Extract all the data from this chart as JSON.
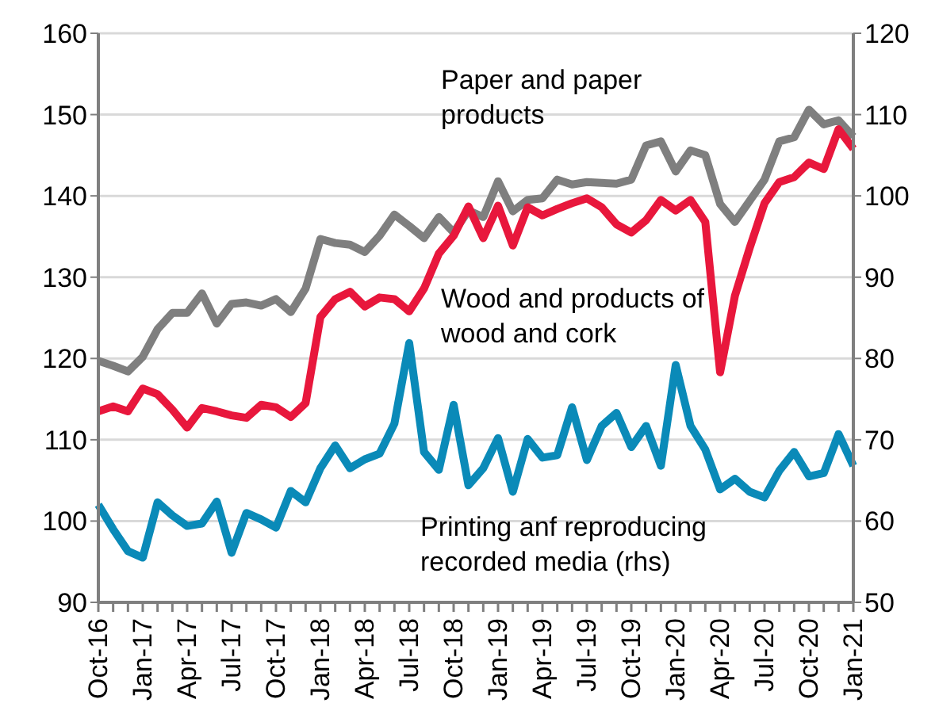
{
  "chart_data": {
    "type": "line",
    "categories": [
      "Oct-16",
      null,
      null,
      "Jan-17",
      null,
      null,
      "Apr-17",
      null,
      null,
      "Jul-17",
      null,
      null,
      "Oct-17",
      null,
      null,
      "Jan-18",
      null,
      null,
      "Apr-18",
      null,
      null,
      "Jul-18",
      null,
      null,
      "Oct-18",
      null,
      null,
      "Jan-19",
      null,
      null,
      "Apr-19",
      null,
      null,
      "Jul-19",
      null,
      null,
      "Oct-19",
      null,
      null,
      "Jan-20",
      null,
      null,
      "Apr-20",
      null,
      null,
      "Jul-20",
      null,
      null,
      "Oct-20",
      null,
      null,
      "Jan-21"
    ],
    "series": [
      {
        "name": "Paper and paper products",
        "color": "#7f7f7f",
        "values": [
          119.7,
          119.1,
          118.4,
          120.2,
          123.6,
          125.6,
          125.6,
          128,
          124.3,
          126.7,
          126.9,
          126.5,
          127.3,
          125.7,
          128.6,
          134.7,
          134.2,
          134,
          133.1,
          135.1,
          137.7,
          136.3,
          134.8,
          137.4,
          135.5,
          138.2,
          137.4,
          141.8,
          138.1,
          139.5,
          139.7,
          142,
          141.4,
          141.7,
          141.6,
          141.5,
          142,
          146.2,
          146.7,
          143,
          145.6,
          145,
          139,
          136.8,
          139.4,
          142,
          146.7,
          147.2,
          150.6,
          148.8,
          149.3,
          147.3
        ]
      },
      {
        "name": "Wood and products of wood and cork",
        "color": "#e8173c",
        "values": [
          113.5,
          114.1,
          113.5,
          116.3,
          115.6,
          113.7,
          111.5,
          113.9,
          113.5,
          113,
          112.7,
          114.3,
          114,
          112.8,
          114.5,
          125.1,
          127.3,
          128.2,
          126.4,
          127.5,
          127.3,
          125.8,
          128.6,
          132.9,
          135.1,
          138.7,
          134.8,
          138.8,
          133.9,
          138.6,
          137.6,
          138.4,
          139.1,
          139.7,
          138.6,
          136.5,
          135.5,
          137,
          139.5,
          138.2,
          139.5,
          136.8,
          118.3,
          127.7,
          133.6,
          139.1,
          141.7,
          142.3,
          144.1,
          143.3,
          148.2,
          145.8
        ]
      },
      {
        "name": "Printing anf reproducing recorded media (rhs)",
        "color": "#0a8ab8",
        "axis": "y2",
        "values": [
          62,
          59,
          56.3,
          55.5,
          62.3,
          60.7,
          59.4,
          59.7,
          62.4,
          56.1,
          61,
          60.2,
          59.2,
          63.7,
          62.3,
          66.5,
          69.3,
          66.5,
          67.6,
          68.3,
          72,
          81.9,
          68.5,
          66.3,
          74.3,
          64.4,
          66.5,
          70.2,
          63.6,
          70.1,
          67.8,
          68.1,
          74,
          67.5,
          71.7,
          73.3,
          69.1,
          71.7,
          66.8,
          79.2,
          71.7,
          68.8,
          63.9,
          65.2,
          63.6,
          62.9,
          66.2,
          68.5,
          65.5,
          65.9,
          70.7,
          66.8
        ]
      }
    ],
    "ylim": [
      90,
      160
    ],
    "yticks": [
      90,
      100,
      110,
      120,
      130,
      140,
      150,
      160
    ],
    "y2lim": [
      50,
      120
    ],
    "y2ticks": [
      50,
      60,
      70,
      80,
      90,
      100,
      110,
      120
    ],
    "grid": "y",
    "legend": false,
    "marker": "none",
    "line_style": "solid"
  }
}
